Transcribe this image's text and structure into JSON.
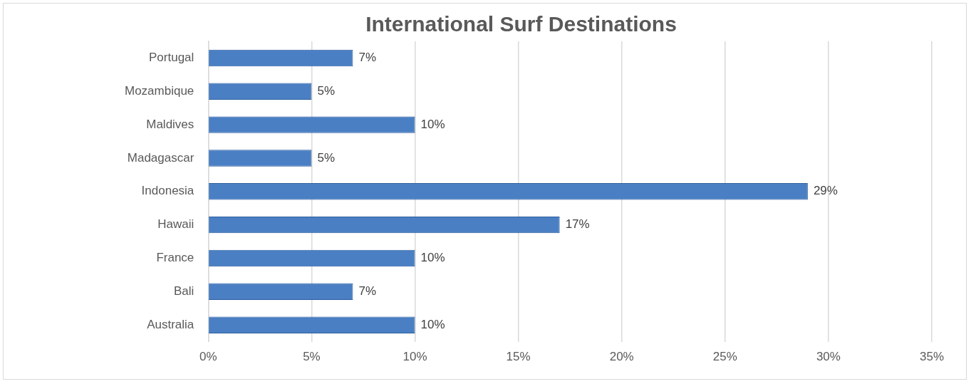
{
  "chart_data": {
    "type": "bar",
    "orientation": "horizontal",
    "title": "International Surf Destinations",
    "categories": [
      "Portugal",
      "Mozambique",
      "Maldives",
      "Madagascar",
      "Indonesia",
      "Hawaii",
      "France",
      "Bali",
      "Australia"
    ],
    "values": [
      7,
      5,
      10,
      5,
      29,
      17,
      10,
      7,
      10
    ],
    "value_labels": [
      "7%",
      "5%",
      "10%",
      "5%",
      "29%",
      "17%",
      "10%",
      "7%",
      "10%"
    ],
    "color": "#4a7fc4",
    "xlim": [
      0,
      35
    ],
    "xticks": [
      {
        "value": 0,
        "label": "0%"
      },
      {
        "value": 5,
        "label": "5%"
      },
      {
        "value": 10,
        "label": "10%"
      },
      {
        "value": 15,
        "label": "15%"
      },
      {
        "value": 20,
        "label": "20%"
      },
      {
        "value": 25,
        "label": "25%"
      },
      {
        "value": 30,
        "label": "30%"
      },
      {
        "value": 35,
        "label": "35%"
      }
    ],
    "grid": "x",
    "legend": false
  }
}
